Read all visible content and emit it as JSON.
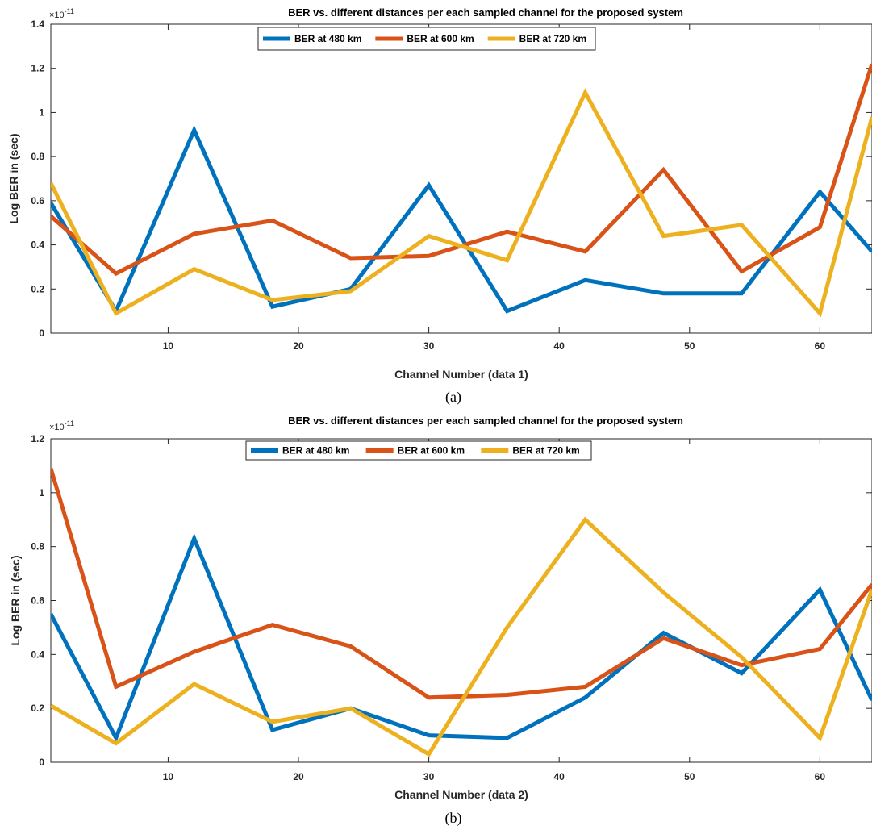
{
  "chart_data": [
    {
      "type": "line",
      "title": "BER vs. different distances per each sampled channel for the proposed system",
      "xlabel": "Channel Number (data 1)",
      "ylabel": "Log BER in (sec)",
      "y_exponent_base": "×10",
      "y_exponent_power": "-11",
      "xlim": [
        1,
        64
      ],
      "ylim": [
        0,
        1.4
      ],
      "xticks": [
        10,
        20,
        30,
        40,
        50,
        60
      ],
      "yticks": [
        0,
        0.2,
        0.4,
        0.6,
        0.8,
        1,
        1.2,
        1.4
      ],
      "ytick_labels": [
        "0",
        "0.2",
        "0.4",
        "0.6",
        "0.8",
        "1",
        "1.2",
        "1.4"
      ],
      "legend": "top-center",
      "caption": "(a)",
      "x": [
        1,
        6,
        12,
        18,
        24,
        30,
        36,
        42,
        48,
        54,
        60,
        64
      ],
      "series": [
        {
          "name": "BER at 480 km",
          "color": "#0072BD",
          "values": [
            0.59,
            0.1,
            0.92,
            0.12,
            0.2,
            0.67,
            0.1,
            0.24,
            0.18,
            0.18,
            0.64,
            0.37
          ]
        },
        {
          "name": "BER at 600 km",
          "color": "#D95319",
          "values": [
            0.53,
            0.27,
            0.45,
            0.51,
            0.34,
            0.35,
            0.46,
            0.37,
            0.74,
            0.28,
            0.48,
            1.22
          ]
        },
        {
          "name": "BER at 720 km",
          "color": "#EDB120",
          "values": [
            0.68,
            0.09,
            0.29,
            0.15,
            0.19,
            0.44,
            0.33,
            1.09,
            0.44,
            0.49,
            0.09,
            0.98
          ]
        }
      ]
    },
    {
      "type": "line",
      "title": "BER vs. different distances per each sampled channel for the proposed system",
      "xlabel": "Channel Number (data 2)",
      "ylabel": "Log BER in (sec)",
      "y_exponent_base": "×10",
      "y_exponent_power": "-11",
      "xlim": [
        1,
        64
      ],
      "ylim": [
        0,
        1.2
      ],
      "xticks": [
        10,
        20,
        30,
        40,
        50,
        60
      ],
      "yticks": [
        0,
        0.2,
        0.4,
        0.6,
        0.8,
        1,
        1.2
      ],
      "ytick_labels": [
        "0",
        "0.2",
        "0.4",
        "0.6",
        "0.8",
        "1",
        "1.2"
      ],
      "legend": "top-center",
      "caption": "(b)",
      "x": [
        1,
        6,
        12,
        18,
        24,
        30,
        36,
        42,
        48,
        54,
        60,
        64
      ],
      "series": [
        {
          "name": "BER at 480 km",
          "color": "#0072BD",
          "values": [
            0.55,
            0.09,
            0.83,
            0.12,
            0.2,
            0.1,
            0.09,
            0.24,
            0.48,
            0.33,
            0.64,
            0.23
          ]
        },
        {
          "name": "BER at 600 km",
          "color": "#D95319",
          "values": [
            1.09,
            0.28,
            0.41,
            0.51,
            0.43,
            0.24,
            0.25,
            0.28,
            0.46,
            0.36,
            0.42,
            0.66
          ]
        },
        {
          "name": "BER at 720 km",
          "color": "#EDB120",
          "values": [
            0.21,
            0.07,
            0.29,
            0.15,
            0.2,
            0.03,
            0.5,
            0.9,
            0.63,
            0.39,
            0.09,
            0.64
          ]
        }
      ]
    }
  ]
}
